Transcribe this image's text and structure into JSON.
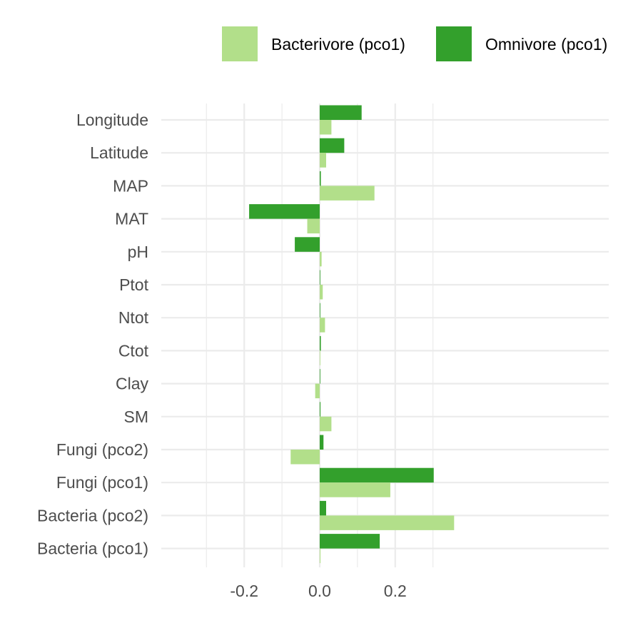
{
  "chart_data": {
    "type": "bar",
    "orientation": "horizontal",
    "title": "",
    "xlabel": "",
    "ylabel": "",
    "xlim": [
      -0.2,
      0.385
    ],
    "x_ticks": [
      -0.2,
      0.0,
      0.2
    ],
    "x_tick_labels": [
      "-0.2",
      "0.0",
      "0.2"
    ],
    "grid": true,
    "legend_position": "top-right",
    "categories": [
      "Longitude",
      "Latitude",
      "MAP",
      "MAT",
      "pH",
      "Ptot",
      "Ntot",
      "Ctot",
      "Clay",
      "SM",
      "Fungi (pco2)",
      "Fungi (pco1)",
      "Bacteria (pco2)",
      "Bacteria (pco1)"
    ],
    "series": [
      {
        "name": "Bacterivore (pco1)",
        "color": "#b2df8a",
        "values": [
          0.031,
          0.017,
          0.145,
          -0.033,
          0.005,
          0.008,
          0.014,
          0.0,
          -0.012,
          0.031,
          -0.077,
          0.187,
          0.356,
          0.002
        ]
      },
      {
        "name": "Omnivore (pco1)",
        "color": "#33a02c",
        "values": [
          0.111,
          0.065,
          0.003,
          -0.187,
          -0.066,
          0.001,
          0.0,
          0.003,
          0.001,
          0.002,
          0.01,
          0.302,
          0.017,
          0.159
        ]
      }
    ]
  }
}
